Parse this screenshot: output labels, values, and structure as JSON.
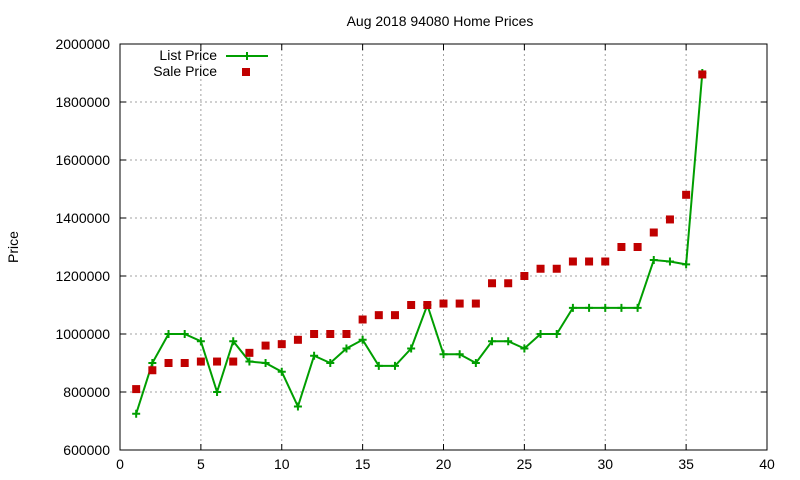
{
  "chart_data": {
    "type": "line",
    "title": "Aug 2018 94080 Home Prices",
    "xlabel": "",
    "ylabel": "Price",
    "xlim": [
      0,
      40
    ],
    "ylim": [
      600000,
      2000000
    ],
    "xticks": [
      "0",
      "5",
      "10",
      "15",
      "20",
      "25",
      "30",
      "35",
      "40"
    ],
    "yticks": [
      "600000",
      "800000",
      "1000000",
      "1200000",
      "1400000",
      "1600000",
      "1800000",
      "2000000"
    ],
    "grid": true,
    "legend_position": "top-left",
    "series": [
      {
        "name": "List Price",
        "style": "line-with-plus-markers",
        "color": "#009e00",
        "x": [
          1,
          2,
          3,
          4,
          5,
          6,
          7,
          8,
          9,
          10,
          11,
          12,
          13,
          14,
          15,
          16,
          17,
          18,
          19,
          20,
          21,
          22,
          23,
          24,
          25,
          26,
          27,
          28,
          29,
          30,
          31,
          32,
          33,
          34,
          35,
          36
        ],
        "values": [
          725000,
          900000,
          1000000,
          1000000,
          975000,
          800000,
          975000,
          905000,
          900000,
          870000,
          750000,
          925000,
          900000,
          950000,
          980000,
          890000,
          890000,
          950000,
          1100000,
          930000,
          930000,
          900000,
          975000,
          975000,
          950000,
          1000000,
          1000000,
          1090000,
          1090000,
          1090000,
          1090000,
          1090000,
          1255000,
          1250000,
          1240000,
          1900000
        ]
      },
      {
        "name": "Sale Price",
        "style": "square-markers",
        "color": "#c00000",
        "x": [
          1,
          2,
          3,
          4,
          5,
          6,
          7,
          8,
          9,
          10,
          11,
          12,
          13,
          14,
          15,
          16,
          17,
          18,
          19,
          20,
          21,
          22,
          23,
          24,
          25,
          26,
          27,
          28,
          29,
          30,
          31,
          32,
          33,
          34,
          35,
          36
        ],
        "values": [
          810000,
          875000,
          900000,
          900000,
          905000,
          905000,
          905000,
          935000,
          960000,
          965000,
          980000,
          1000000,
          1000000,
          1000000,
          1050000,
          1065000,
          1065000,
          1100000,
          1100000,
          1105000,
          1105000,
          1105000,
          1175000,
          1175000,
          1200000,
          1225000,
          1225000,
          1250000,
          1250000,
          1250000,
          1300000,
          1300000,
          1350000,
          1395000,
          1480000,
          1895000
        ]
      }
    ]
  }
}
